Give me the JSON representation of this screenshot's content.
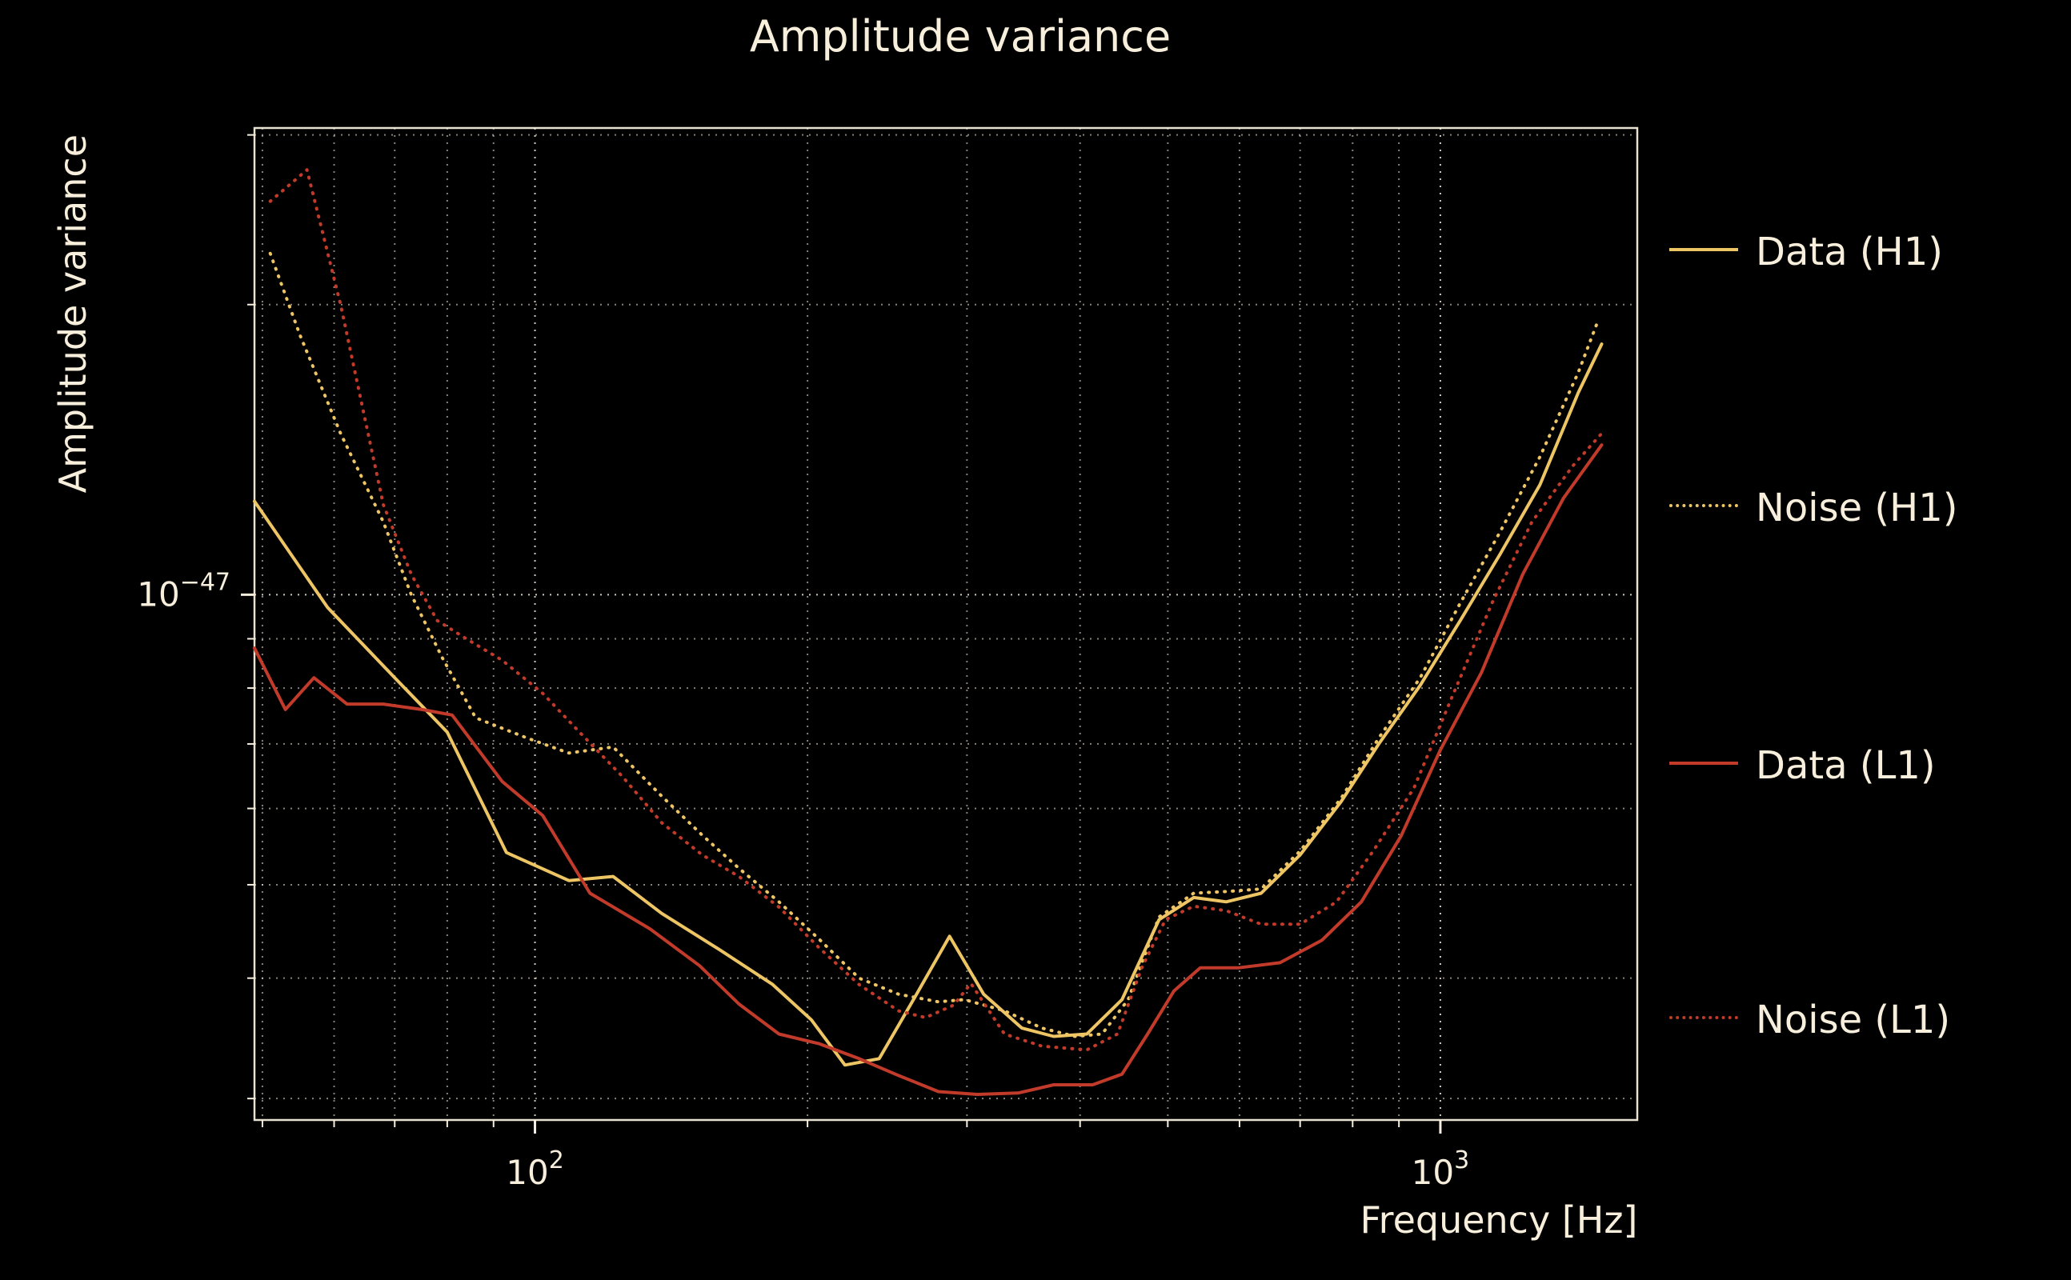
{
  "colors": {
    "background": "#000000",
    "text": "#f7eedb",
    "grid": "#f6eedd",
    "spine": "#f6eedd",
    "gold": "#eec564",
    "red": "#c23b2a"
  },
  "chart_data": {
    "type": "line",
    "title": "Amplitude variance",
    "xlabel": "Frequency [Hz]",
    "ylabel": "Amplitude variance",
    "xscale": "log",
    "yscale": "log",
    "grid": true,
    "legend_position": "right-outside",
    "xlim": [
      49,
      1650
    ],
    "y_unit_exponent": -48,
    "ylim": [
      2.85,
      30.5
    ],
    "xticks": [
      {
        "value": 100,
        "base": "10",
        "sup": "2"
      },
      {
        "value": 1000,
        "base": "10",
        "sup": "3"
      }
    ],
    "yticks": [
      {
        "value": 10,
        "base": "10",
        "sup": "−47"
      }
    ],
    "series": [
      {
        "name": "Data (H1)",
        "color": "gold",
        "line": "solid",
        "points": [
          [
            49,
            12.5
          ],
          [
            59,
            9.7
          ],
          [
            70,
            8.2
          ],
          [
            80,
            7.2
          ],
          [
            93,
            5.4
          ],
          [
            109,
            5.05
          ],
          [
            122,
            5.1
          ],
          [
            138,
            4.67
          ],
          [
            160,
            4.28
          ],
          [
            183,
            3.94
          ],
          [
            202,
            3.62
          ],
          [
            220,
            3.25
          ],
          [
            240,
            3.3
          ],
          [
            261,
            3.78
          ],
          [
            287,
            4.42
          ],
          [
            313,
            3.85
          ],
          [
            345,
            3.55
          ],
          [
            374,
            3.48
          ],
          [
            407,
            3.5
          ],
          [
            445,
            3.8
          ],
          [
            489,
            4.6
          ],
          [
            534,
            4.85
          ],
          [
            580,
            4.8
          ],
          [
            634,
            4.9
          ],
          [
            700,
            5.37
          ],
          [
            777,
            6.1
          ],
          [
            855,
            7.0
          ],
          [
            950,
            8.05
          ],
          [
            1052,
            9.4
          ],
          [
            1163,
            11.0
          ],
          [
            1288,
            13.0
          ],
          [
            1420,
            16.2
          ],
          [
            1507,
            18.2
          ]
        ]
      },
      {
        "name": "Noise (H1)",
        "color": "gold",
        "line": "dotted",
        "points": [
          [
            51,
            22.6
          ],
          [
            55,
            18.6
          ],
          [
            61,
            14.7
          ],
          [
            68,
            11.9
          ],
          [
            73,
            10.0
          ],
          [
            79,
            8.6
          ],
          [
            86,
            7.45
          ],
          [
            98,
            7.1
          ],
          [
            109,
            6.85
          ],
          [
            122,
            6.95
          ],
          [
            138,
            6.18
          ],
          [
            153,
            5.63
          ],
          [
            168,
            5.2
          ],
          [
            186,
            4.8
          ],
          [
            206,
            4.39
          ],
          [
            228,
            4.0
          ],
          [
            252,
            3.85
          ],
          [
            279,
            3.78
          ],
          [
            298,
            3.8
          ],
          [
            330,
            3.7
          ],
          [
            363,
            3.55
          ],
          [
            395,
            3.48
          ],
          [
            423,
            3.5
          ],
          [
            452,
            3.8
          ],
          [
            489,
            4.63
          ],
          [
            534,
            4.9
          ],
          [
            580,
            4.92
          ],
          [
            634,
            4.95
          ],
          [
            700,
            5.42
          ],
          [
            777,
            6.15
          ],
          [
            855,
            7.1
          ],
          [
            950,
            8.2
          ],
          [
            1052,
            9.8
          ],
          [
            1163,
            11.6
          ],
          [
            1288,
            13.9
          ],
          [
            1420,
            17.0
          ],
          [
            1495,
            19.3
          ]
        ]
      },
      {
        "name": "Data (L1)",
        "color": "red",
        "line": "solid",
        "points": [
          [
            49,
            8.8
          ],
          [
            53,
            7.6
          ],
          [
            57,
            8.2
          ],
          [
            62,
            7.7
          ],
          [
            68,
            7.7
          ],
          [
            75,
            7.6
          ],
          [
            81,
            7.5
          ],
          [
            92,
            6.4
          ],
          [
            102,
            5.9
          ],
          [
            115,
            4.9
          ],
          [
            134,
            4.5
          ],
          [
            152,
            4.12
          ],
          [
            168,
            3.76
          ],
          [
            186,
            3.5
          ],
          [
            206,
            3.42
          ],
          [
            228,
            3.3
          ],
          [
            252,
            3.17
          ],
          [
            279,
            3.05
          ],
          [
            308,
            3.03
          ],
          [
            342,
            3.04
          ],
          [
            374,
            3.1
          ],
          [
            413,
            3.1
          ],
          [
            445,
            3.18
          ],
          [
            475,
            3.5
          ],
          [
            508,
            3.88
          ],
          [
            543,
            4.1
          ],
          [
            598,
            4.1
          ],
          [
            665,
            4.15
          ],
          [
            740,
            4.38
          ],
          [
            818,
            4.8
          ],
          [
            905,
            5.62
          ],
          [
            1000,
            6.9
          ],
          [
            1110,
            8.3
          ],
          [
            1233,
            10.5
          ],
          [
            1368,
            12.6
          ],
          [
            1507,
            14.3
          ]
        ]
      },
      {
        "name": "Noise (L1)",
        "color": "red",
        "line": "dotted",
        "points": [
          [
            51,
            25.6
          ],
          [
            56,
            27.6
          ],
          [
            61,
            20.0
          ],
          [
            68,
            12.4
          ],
          [
            73,
            10.5
          ],
          [
            78,
            9.4
          ],
          [
            84,
            9.0
          ],
          [
            92,
            8.55
          ],
          [
            102,
            7.9
          ],
          [
            112,
            7.2
          ],
          [
            125,
            6.47
          ],
          [
            138,
            5.8
          ],
          [
            153,
            5.37
          ],
          [
            168,
            5.1
          ],
          [
            186,
            4.74
          ],
          [
            206,
            4.3
          ],
          [
            228,
            3.94
          ],
          [
            252,
            3.7
          ],
          [
            270,
            3.64
          ],
          [
            290,
            3.75
          ],
          [
            303,
            3.95
          ],
          [
            330,
            3.5
          ],
          [
            363,
            3.4
          ],
          [
            407,
            3.37
          ],
          [
            440,
            3.5
          ],
          [
            468,
            4.1
          ],
          [
            497,
            4.6
          ],
          [
            534,
            4.75
          ],
          [
            580,
            4.7
          ],
          [
            634,
            4.55
          ],
          [
            700,
            4.55
          ],
          [
            768,
            4.8
          ],
          [
            843,
            5.42
          ],
          [
            935,
            6.3
          ],
          [
            1034,
            7.9
          ],
          [
            1143,
            9.85
          ],
          [
            1262,
            11.9
          ],
          [
            1400,
            13.6
          ],
          [
            1507,
            14.7
          ]
        ]
      }
    ]
  }
}
